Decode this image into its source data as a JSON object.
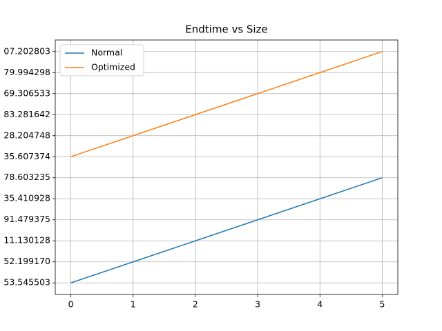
{
  "chart_data": {
    "type": "line",
    "title": "Endtime vs Size",
    "x": [
      0,
      1,
      2,
      3,
      4,
      5
    ],
    "series": [
      {
        "name": "Normal",
        "color": "#1f77b4",
        "values": [
          0,
          1,
          2,
          3,
          4,
          5
        ]
      },
      {
        "name": "Optimized",
        "color": "#ff7f0e",
        "values": [
          6,
          7,
          8,
          9,
          10,
          11
        ]
      }
    ],
    "xlim": [
      -0.25,
      5.25
    ],
    "xticks": [
      0,
      1,
      2,
      3,
      4,
      5
    ],
    "ylim": [
      -0.55,
      11.55
    ],
    "yticks": [
      {
        "value": 0,
        "label": "53.545503"
      },
      {
        "value": 1,
        "label": "52.199170"
      },
      {
        "value": 2,
        "label": "11.130128"
      },
      {
        "value": 3,
        "label": "91.479375"
      },
      {
        "value": 4,
        "label": "35.410928"
      },
      {
        "value": 5,
        "label": "78.603235"
      },
      {
        "value": 6,
        "label": "35.607374"
      },
      {
        "value": 7,
        "label": "28.204748"
      },
      {
        "value": 8,
        "label": "83.281642"
      },
      {
        "value": 9,
        "label": "69.306533"
      },
      {
        "value": 10,
        "label": "79.994298"
      },
      {
        "value": 11,
        "label": "07.202803"
      }
    ],
    "grid": true,
    "legend": "upper-left"
  }
}
